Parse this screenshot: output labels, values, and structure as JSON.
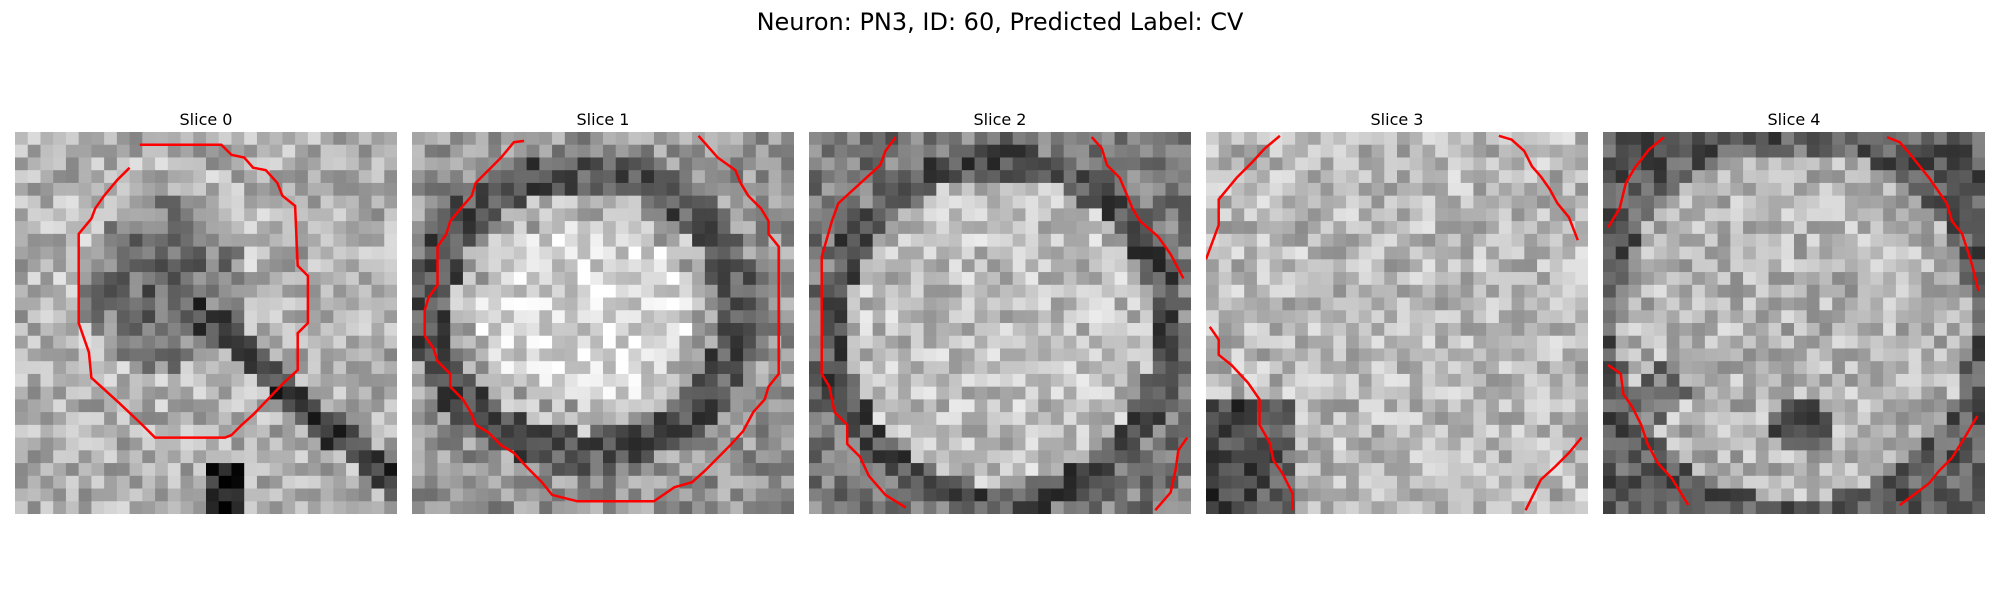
{
  "figure": {
    "suptitle": "Neuron: PN3, ID: 60, Predicted Label: CV"
  },
  "panels": [
    {
      "title": "Slice 0"
    },
    {
      "title": "Slice 1"
    },
    {
      "title": "Slice 2"
    },
    {
      "title": "Slice 3"
    },
    {
      "title": "Slice 4"
    }
  ],
  "colors": {
    "contour": "#ff0000",
    "background": "#ffffff"
  }
}
